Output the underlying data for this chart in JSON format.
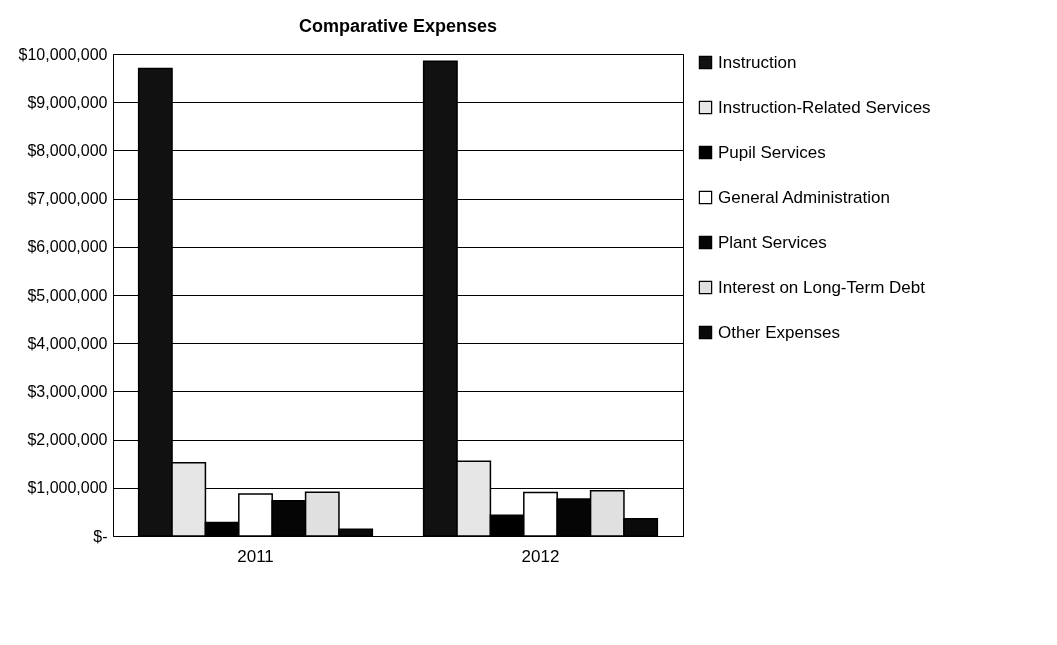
{
  "chart_data": {
    "type": "bar",
    "title": "Comparative Expenses",
    "categories": [
      "2011",
      "2012"
    ],
    "series": [
      {
        "name": "Instruction",
        "color": "#111111",
        "values": [
          9700000,
          9850000
        ]
      },
      {
        "name": "Instruction-Related Services",
        "color": "#e6e6e6",
        "values": [
          1520000,
          1550000
        ]
      },
      {
        "name": "Pupil Services",
        "color": "#000000",
        "values": [
          280000,
          430000
        ]
      },
      {
        "name": "General Administration",
        "color": "#ffffff",
        "values": [
          870000,
          900000
        ]
      },
      {
        "name": "Plant Services",
        "color": "#050505",
        "values": [
          730000,
          770000
        ]
      },
      {
        "name": "Interest on Long-Term Debt",
        "color": "#e0e0e0",
        "values": [
          910000,
          940000
        ]
      },
      {
        "name": "Other Expenses",
        "color": "#0a0a0a",
        "values": [
          140000,
          360000
        ]
      }
    ],
    "ylim": [
      0,
      10000000
    ],
    "yticks": [
      {
        "value": 0,
        "label": "$-"
      },
      {
        "value": 1000000,
        "label": "$1,000,000"
      },
      {
        "value": 2000000,
        "label": "$2,000,000"
      },
      {
        "value": 3000000,
        "label": "$3,000,000"
      },
      {
        "value": 4000000,
        "label": "$4,000,000"
      },
      {
        "value": 5000000,
        "label": "$5,000,000"
      },
      {
        "value": 6000000,
        "label": "$6,000,000"
      },
      {
        "value": 7000000,
        "label": "$7,000,000"
      },
      {
        "value": 8000000,
        "label": "$8,000,000"
      },
      {
        "value": 9000000,
        "label": "$9,000,000"
      },
      {
        "value": 10000000,
        "label": "$10,000,000"
      }
    ],
    "grid": "y",
    "legend": "right"
  }
}
